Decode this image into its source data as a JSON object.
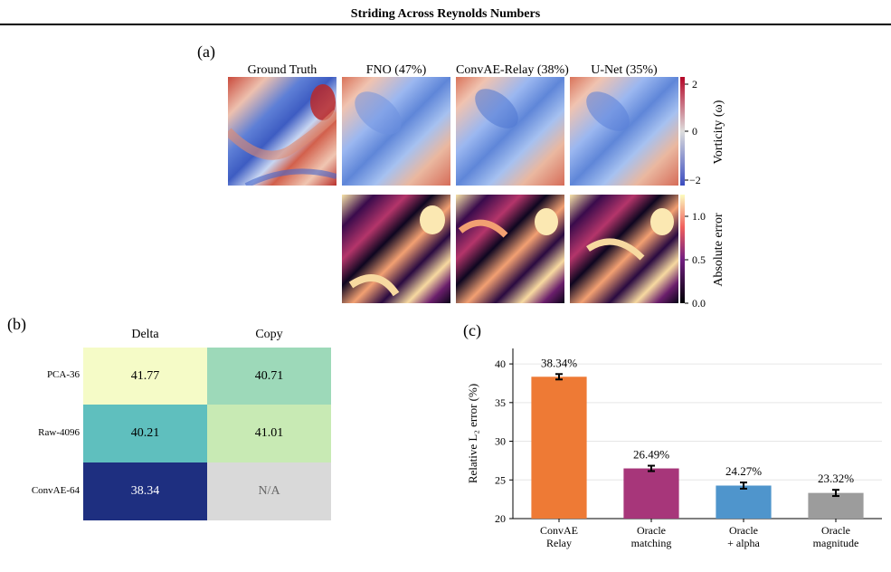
{
  "header": {
    "title": "Striding Across Reynolds Numbers"
  },
  "panel_a": {
    "label": "(a)",
    "columns": [
      "Ground Truth",
      "FNO (47%)",
      "ConvAE-Relay (38%)",
      "U-Net (35%)"
    ],
    "vorticity_colorbar": {
      "label": "Vorticity (ω)",
      "ticks": [
        "2",
        "0",
        "−2"
      ]
    },
    "error_colorbar": {
      "label": "Absolute error",
      "ticks": [
        "1.0",
        "0.5",
        "0.0"
      ]
    }
  },
  "panel_b": {
    "label": "(b)",
    "columns": [
      "Delta",
      "Copy"
    ],
    "rows": [
      {
        "name": "PCA-36",
        "cells": [
          "41.77",
          "40.71"
        ],
        "colors": [
          "#f5fbc7",
          "#9dd9b9"
        ]
      },
      {
        "name": "Raw-4096",
        "cells": [
          "40.21",
          "41.01"
        ],
        "colors": [
          "#5fbfbe",
          "#c8eab4"
        ]
      },
      {
        "name": "ConvAE-64",
        "cells": [
          "38.34",
          "N/A"
        ],
        "colors": [
          "#1e2f80",
          "#d9d9d9"
        ]
      }
    ]
  },
  "panel_c": {
    "label": "(c)"
  },
  "chart_data": {
    "type": "bar",
    "categories": [
      "ConvAE\nRelay",
      "Oracle\nmatching",
      "Oracle\n+ alpha",
      "Oracle\nmagnitude"
    ],
    "values": [
      38.34,
      26.49,
      24.27,
      23.32
    ],
    "errors": [
      0.35,
      0.35,
      0.4,
      0.4
    ],
    "value_labels": [
      "38.34%",
      "26.49%",
      "24.27%",
      "23.32%"
    ],
    "colors": [
      "#ee7a35",
      "#a7367a",
      "#4f95cc",
      "#9c9c9c"
    ],
    "ylabel": "Relative L₂ error (%)",
    "ylim": [
      20,
      42
    ],
    "yticks": [
      20,
      25,
      30,
      35,
      40
    ],
    "grid": true
  }
}
